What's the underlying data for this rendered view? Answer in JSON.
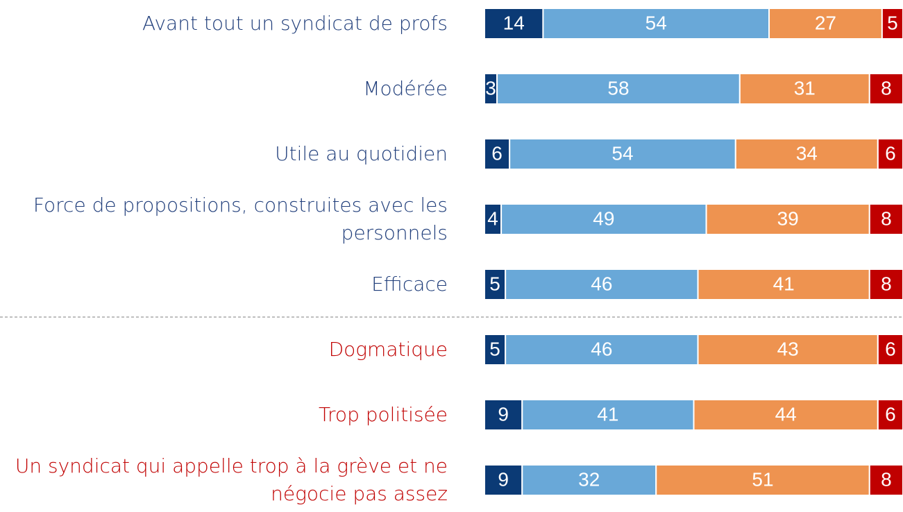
{
  "chart_data": {
    "type": "stacked-bar-horizontal",
    "categories": [
      "Avant tout un syndicat de profs",
      "Modérée",
      "Utile au quotidien",
      "Force de propositions, construites avec les personnels",
      "Efficace",
      "Dogmatique",
      "Trop politisée",
      "Un syndicat qui appelle trop à la grève et ne négocie pas assez"
    ],
    "category_colors": [
      "#1f3d7a",
      "#1f3d7a",
      "#1f3d7a",
      "#1f3d7a",
      "#1f3d7a",
      "#c00000",
      "#c00000",
      "#c00000"
    ],
    "series": [
      {
        "color": "#0b3a75",
        "values": [
          14,
          3,
          6,
          4,
          5,
          5,
          9,
          9
        ]
      },
      {
        "color": "#69a8d8",
        "values": [
          54,
          58,
          54,
          49,
          46,
          46,
          41,
          32
        ]
      },
      {
        "color": "#ee9350",
        "values": [
          27,
          31,
          34,
          39,
          41,
          43,
          44,
          51
        ]
      },
      {
        "color": "#c00000",
        "values": [
          5,
          8,
          6,
          8,
          8,
          6,
          6,
          8
        ]
      }
    ]
  }
}
